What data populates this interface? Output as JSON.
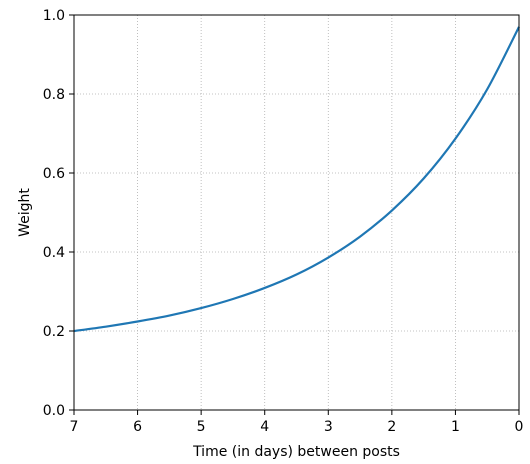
{
  "chart_data": {
    "type": "line",
    "title": "",
    "xlabel": "Time (in days) between posts",
    "ylabel": "Weight",
    "xlim": [
      7,
      0
    ],
    "ylim": [
      0.0,
      1.0
    ],
    "x_reversed": true,
    "grid": true,
    "x_ticks": [
      "7",
      "6",
      "5",
      "4",
      "3",
      "2",
      "1",
      "0"
    ],
    "y_ticks": [
      "0.0",
      "0.2",
      "0.4",
      "0.6",
      "0.8",
      "1.0"
    ],
    "series": [
      {
        "color": "#1f77b4",
        "x": [
          7,
          6.5,
          6,
          5.5,
          5,
          4.5,
          4,
          3.5,
          3,
          2.5,
          2,
          1.5,
          1,
          0.5,
          0
        ],
        "y": [
          0.2,
          0.211,
          0.224,
          0.239,
          0.258,
          0.281,
          0.309,
          0.343,
          0.386,
          0.439,
          0.505,
          0.586,
          0.687,
          0.812,
          0.97
        ]
      }
    ]
  }
}
